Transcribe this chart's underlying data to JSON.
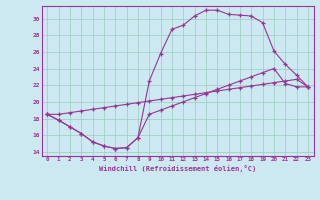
{
  "xlabel": "Windchill (Refroidissement éolien,°C)",
  "bg_color": "#cce8f0",
  "grid_color": "#99ccbb",
  "line_color": "#993399",
  "xlim": [
    -0.5,
    23.5
  ],
  "ylim": [
    13.5,
    31.5
  ],
  "yticks": [
    14,
    16,
    18,
    20,
    22,
    24,
    26,
    28,
    30
  ],
  "xticks": [
    0,
    1,
    2,
    3,
    4,
    5,
    6,
    7,
    8,
    9,
    10,
    11,
    12,
    13,
    14,
    15,
    16,
    17,
    18,
    19,
    20,
    21,
    22,
    23
  ],
  "line1_x": [
    0,
    1,
    2,
    3,
    4,
    5,
    6,
    7,
    8,
    9,
    10,
    11,
    12,
    13,
    14,
    15,
    16,
    17,
    18,
    19,
    20,
    21,
    22,
    23
  ],
  "line1_y": [
    18.5,
    17.8,
    17.0,
    16.2,
    15.2,
    14.7,
    14.4,
    14.5,
    15.7,
    18.5,
    19.0,
    19.5,
    20.0,
    20.5,
    21.0,
    21.5,
    22.0,
    22.5,
    23.0,
    23.5,
    24.0,
    22.2,
    21.8,
    21.8
  ],
  "line2_x": [
    0,
    1,
    2,
    3,
    4,
    5,
    6,
    7,
    8,
    9,
    10,
    11,
    12,
    13,
    14,
    15,
    16,
    17,
    18,
    19,
    20,
    21,
    22,
    23
  ],
  "line2_y": [
    18.5,
    17.8,
    17.0,
    16.2,
    15.2,
    14.7,
    14.4,
    14.5,
    15.7,
    22.5,
    25.8,
    28.7,
    29.2,
    30.3,
    31.0,
    31.0,
    30.5,
    30.4,
    30.3,
    29.5,
    26.1,
    24.5,
    23.2,
    21.8
  ],
  "line3_x": [
    0,
    1,
    2,
    3,
    4,
    5,
    6,
    7,
    8,
    9,
    10,
    11,
    12,
    13,
    14,
    15,
    16,
    17,
    18,
    19,
    20,
    21,
    22,
    23
  ],
  "line3_y": [
    18.5,
    18.5,
    18.7,
    18.9,
    19.1,
    19.3,
    19.5,
    19.7,
    19.9,
    20.1,
    20.3,
    20.5,
    20.7,
    20.9,
    21.1,
    21.3,
    21.5,
    21.7,
    21.9,
    22.1,
    22.3,
    22.5,
    22.7,
    21.8
  ]
}
